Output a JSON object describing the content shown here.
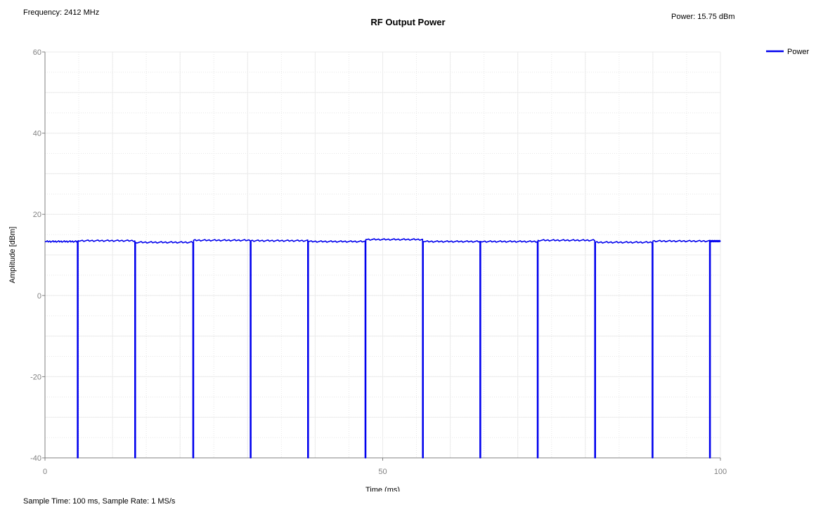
{
  "header": {
    "frequency_readout": "Frequency: 2412 MHz",
    "power_readout": "Power: 15.75 dBm",
    "sample_info": "Sample Time: 100 ms,  Sample Rate: 1 MS/s"
  },
  "chart_data": {
    "type": "line",
    "title": "RF Output Power",
    "xlabel": "Time (ms)",
    "ylabel": "Amplitude [dBm]",
    "xlim": [
      0,
      100
    ],
    "ylim": [
      -40,
      60
    ],
    "x_ticks": [
      0,
      50,
      100
    ],
    "x_tick_labels": [
      "0",
      "50",
      "100"
    ],
    "y_ticks": [
      -40,
      -20,
      0,
      20,
      40,
      60
    ],
    "y_tick_labels": [
      "-40",
      "-20",
      "0",
      "20",
      "40",
      "60"
    ],
    "grid": true,
    "legend_position": "top-right",
    "series": [
      {
        "name": "Power",
        "color": "#0000ee",
        "pulses": [
          {
            "start": 0.0,
            "end": 4.8,
            "level": 13.3
          },
          {
            "start": 4.9,
            "end": 13.3,
            "level": 13.5
          },
          {
            "start": 13.4,
            "end": 21.9,
            "level": 13.1
          },
          {
            "start": 22.0,
            "end": 30.4,
            "level": 13.6
          },
          {
            "start": 30.5,
            "end": 38.9,
            "level": 13.5
          },
          {
            "start": 39.0,
            "end": 47.4,
            "level": 13.3
          },
          {
            "start": 47.5,
            "end": 55.9,
            "level": 13.8
          },
          {
            "start": 56.0,
            "end": 64.4,
            "level": 13.3
          },
          {
            "start": 64.5,
            "end": 72.9,
            "level": 13.3
          },
          {
            "start": 73.0,
            "end": 81.4,
            "level": 13.6
          },
          {
            "start": 81.5,
            "end": 89.9,
            "level": 13.1
          },
          {
            "start": 90.0,
            "end": 98.4,
            "level": 13.4
          },
          {
            "start": 98.5,
            "end": 100.0,
            "level": 13.4
          }
        ],
        "gap_level": -40
      }
    ]
  }
}
